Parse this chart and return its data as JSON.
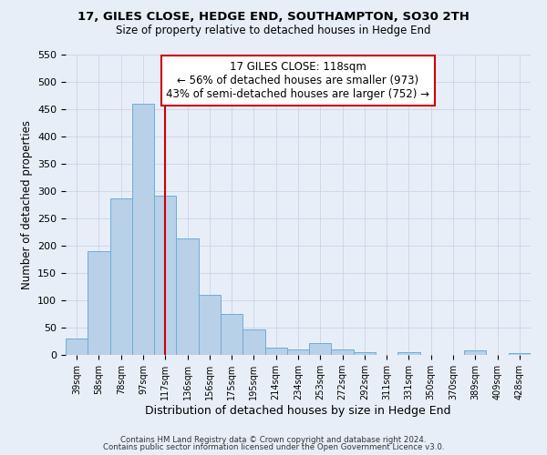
{
  "title": "17, GILES CLOSE, HEDGE END, SOUTHAMPTON, SO30 2TH",
  "subtitle": "Size of property relative to detached houses in Hedge End",
  "xlabel": "Distribution of detached houses by size in Hedge End",
  "ylabel": "Number of detached properties",
  "bar_labels": [
    "39sqm",
    "58sqm",
    "78sqm",
    "97sqm",
    "117sqm",
    "136sqm",
    "156sqm",
    "175sqm",
    "195sqm",
    "214sqm",
    "234sqm",
    "253sqm",
    "272sqm",
    "292sqm",
    "311sqm",
    "331sqm",
    "350sqm",
    "370sqm",
    "389sqm",
    "409sqm",
    "428sqm"
  ],
  "bar_values": [
    30,
    190,
    287,
    460,
    292,
    213,
    110,
    75,
    46,
    13,
    10,
    22,
    10,
    5,
    0,
    5,
    0,
    0,
    8,
    0,
    3
  ],
  "bar_color": "#b8d0e8",
  "bar_edge_color": "#6baed6",
  "vline_x": 4,
  "vline_color": "#cc0000",
  "ylim": [
    0,
    550
  ],
  "yticks": [
    0,
    50,
    100,
    150,
    200,
    250,
    300,
    350,
    400,
    450,
    500,
    550
  ],
  "annotation_title": "17 GILES CLOSE: 118sqm",
  "annotation_line1": "← 56% of detached houses are smaller (973)",
  "annotation_line2": "43% of semi-detached houses are larger (752) →",
  "annotation_box_color": "#ffffff",
  "annotation_box_edge": "#cc0000",
  "footer1": "Contains HM Land Registry data © Crown copyright and database right 2024.",
  "footer2": "Contains public sector information licensed under the Open Government Licence v3.0.",
  "background_color": "#e8eef8",
  "grid_color": "#c8d4e8"
}
